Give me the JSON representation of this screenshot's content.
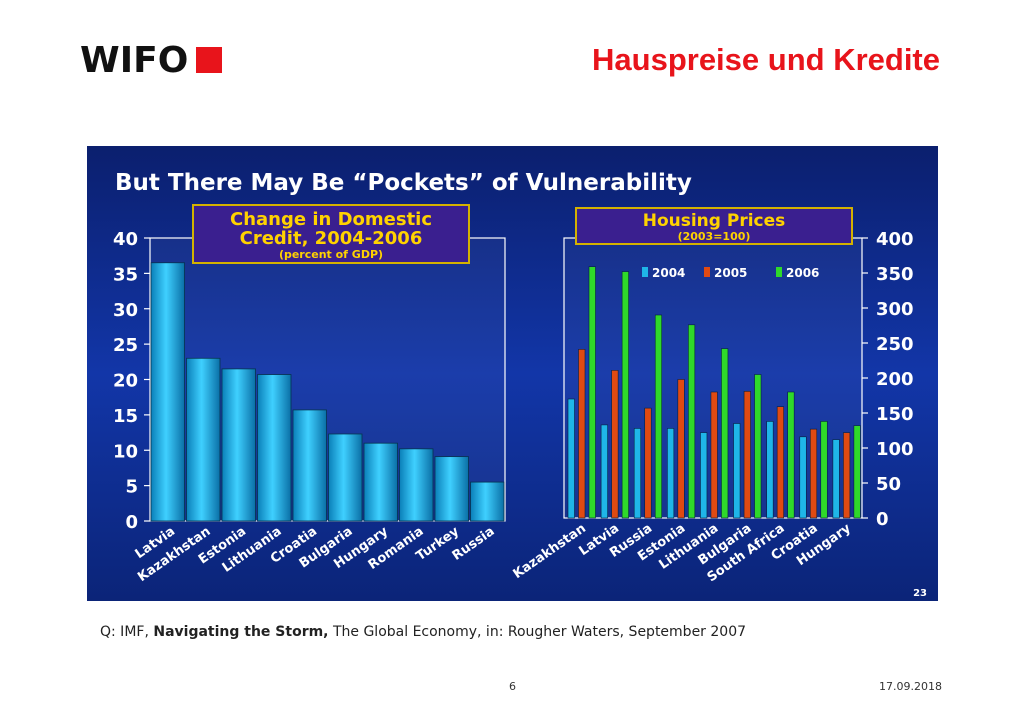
{
  "header": {
    "logo_text": "WIFO",
    "title": "Hauspreise und Kredite"
  },
  "slide": {
    "title": "But There May Be “Pockets” of Vulnerability",
    "slide_number": "23"
  },
  "colors": {
    "slide_bg": "#0d2a8a",
    "title_red": "#e8141b",
    "bar_cyan": "#1fb6e8",
    "bar_orange": "#e04a12",
    "bar_green": "#2fd92a",
    "box_fill": "#3a1f8f",
    "box_border": "#d4b200",
    "box_text": "#ffd200"
  },
  "chart_data": [
    {
      "type": "bar",
      "title_line1": "Change in Domestic",
      "title_line2": "Credit, 2004-2006",
      "subtitle": "(percent of GDP)",
      "categories": [
        "Latvia",
        "Kazakhstan",
        "Estonia",
        "Lithuania",
        "Croatia",
        "Bulgaria",
        "Hungary",
        "Romania",
        "Turkey",
        "Russia"
      ],
      "values": [
        36.5,
        23,
        21.5,
        20.7,
        15.7,
        12.3,
        11,
        10.2,
        9.1,
        5.5
      ],
      "ylim": [
        0,
        40
      ],
      "yticks": [
        "0",
        "5",
        "10",
        "15",
        "20",
        "25",
        "30",
        "35",
        "40"
      ],
      "axis_side": "left"
    },
    {
      "type": "bar",
      "title_line1": "Housing Prices",
      "subtitle": "(2003=100)",
      "categories": [
        "Kazakhstan",
        "Latvia",
        "Russia",
        "Estonia",
        "Lithuania",
        "Bulgaria",
        "South Africa",
        "Croatia",
        "Hungary"
      ],
      "series": [
        {
          "name": "2004",
          "values": [
            170,
            133,
            128,
            128,
            122,
            135,
            138,
            116,
            112
          ]
        },
        {
          "name": "2005",
          "values": [
            241,
            211,
            157,
            198,
            180,
            181,
            159,
            127,
            122
          ]
        },
        {
          "name": "2006",
          "values": [
            359,
            352,
            290,
            276,
            242,
            205,
            180,
            138,
            132
          ]
        }
      ],
      "ylim": [
        0,
        400
      ],
      "yticks": [
        "0",
        "50",
        "100",
        "150",
        "200",
        "250",
        "300",
        "350",
        "400"
      ],
      "axis_side": "right",
      "legend_placement": "top"
    }
  ],
  "footer": {
    "source_prefix": "Q:  IMF, ",
    "source_bold": "Navigating the Storm,",
    "source_rest": " The Global Economy, in: Rougher Waters, September 2007",
    "page_number": "6",
    "date": "17.09.2018"
  }
}
